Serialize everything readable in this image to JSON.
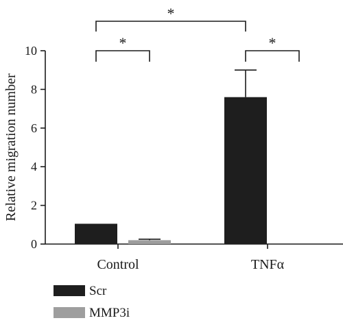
{
  "chart_data": {
    "type": "bar",
    "categories": [
      "Control",
      "TNFα"
    ],
    "series": [
      {
        "name": "Scr",
        "values": [
          1.05,
          7.6
        ],
        "errors": [
          0,
          1.4
        ],
        "color": "#1e1e1e"
      },
      {
        "name": "MMP3i",
        "values": [
          0.2,
          0.0
        ],
        "errors": [
          0.05,
          0
        ],
        "color": "#9e9e9e"
      }
    ],
    "ylabel": "Relative migration number",
    "xlabel": "",
    "ylim": [
      0,
      10
    ],
    "yticks": [
      0,
      2,
      4,
      6,
      8,
      10
    ],
    "significance": [
      {
        "label": "*",
        "from": [
          0,
          0
        ],
        "to": [
          0,
          1
        ]
      },
      {
        "label": "*",
        "from": [
          1,
          0
        ],
        "to": [
          1,
          1
        ]
      },
      {
        "label": "*",
        "from": [
          0,
          0
        ],
        "to": [
          1,
          0
        ]
      }
    ],
    "legend_position": "bottom-left",
    "grid": false
  }
}
